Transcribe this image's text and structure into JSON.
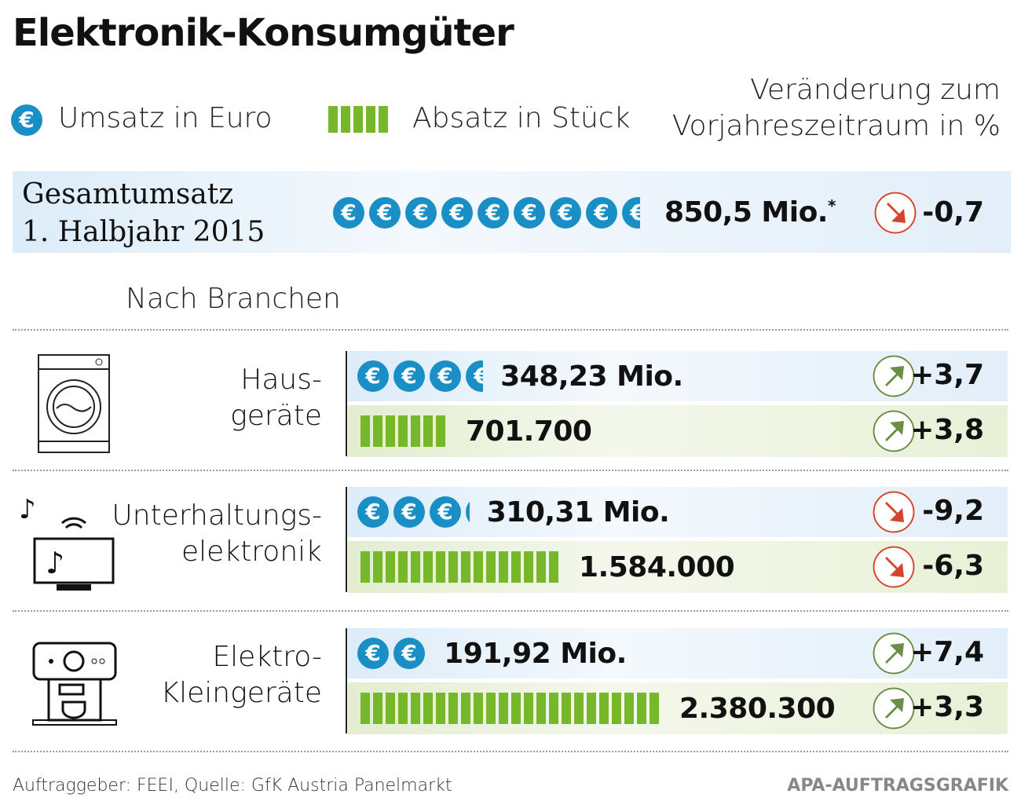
{
  "title": "Elektronik-Konsumgüter",
  "legend": {
    "umsatz": "Umsatz in Euro",
    "absatz": "Absatz in Stück",
    "change_line1": "Veränderung zum",
    "change_line2": "Vorjahreszeitraum in %"
  },
  "total": {
    "label_line1": "Gesamtumsatz",
    "label_line2": "1. Halbjahr 2015",
    "value": "850,5 Mio.",
    "footnote": "*",
    "change": "-0,7",
    "direction": "down"
  },
  "section_label": "Nach Branchen",
  "colors": {
    "euro": "#1a8fc6",
    "units": "#77b82a",
    "up": "#6b8e47",
    "down": "#d4452b"
  },
  "chart_data": {
    "type": "pictogram",
    "unit_coin": "100 Mio. Euro",
    "unit_bar": "100.000 Stück",
    "categories": [
      "Hausgeräte",
      "Unterhaltungselektronik",
      "Elektro-Kleingeräte"
    ],
    "total_umsatz_mio": 850.5,
    "series": [
      {
        "name": "Umsatz in Euro",
        "values": [
          348.23,
          310.31,
          191.92
        ],
        "labels": [
          "348,23 Mio.",
          "310,31 Mio.",
          "191,92 Mio."
        ],
        "changes": [
          "+3,7",
          "-9,2",
          "+7,4"
        ]
      },
      {
        "name": "Absatz in Stück",
        "values": [
          701700,
          1584000,
          2380300
        ],
        "labels": [
          "701.700",
          "1.584.000",
          "2.380.300"
        ],
        "changes": [
          "+3,8",
          "-6,3",
          "+3,3"
        ]
      }
    ]
  },
  "branches": [
    {
      "line1": "Haus-",
      "line2": "geräte",
      "icon": "washing-machine-icon"
    },
    {
      "line1": "Unterhaltungs-",
      "line2": "elektronik",
      "icon": "tv-music-icon"
    },
    {
      "line1": "Elektro-",
      "line2": "Kleingeräte",
      "icon": "coffee-machine-icon"
    }
  ],
  "footer": {
    "source": "Auftraggeber: FEEI, Quelle: GfK Austria Panelmarkt",
    "credit": "APA-AUFTRAGSGRAFIK"
  }
}
